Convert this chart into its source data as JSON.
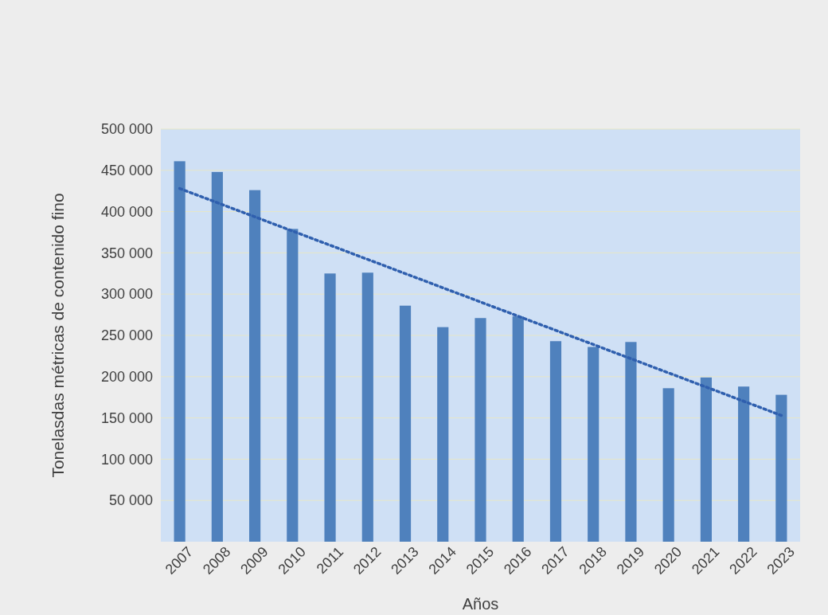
{
  "chart_data": {
    "type": "bar",
    "xlabel": "Años",
    "ylabel": "Tonelasdas métricas de contenido fino",
    "categories": [
      "2007",
      "2008",
      "2009",
      "2010",
      "2011",
      "2012",
      "2013",
      "2014",
      "2015",
      "2016",
      "2017",
      "2018",
      "2019",
      "2020",
      "2021",
      "2022",
      "2023"
    ],
    "series": [
      {
        "color": "#4f81bd",
        "values": [
          461000,
          448000,
          426000,
          379000,
          325000,
          326000,
          286000,
          260000,
          271000,
          273000,
          243000,
          236000,
          242000,
          186000,
          199000,
          188000,
          178000
        ]
      },
      {
        "type": "line",
        "color": "#2f5fae",
        "line_style": "dotted",
        "values": [
          428000,
          null,
          null,
          null,
          null,
          null,
          null,
          null,
          null,
          null,
          null,
          null,
          null,
          null,
          null,
          null,
          153000
        ]
      }
    ],
    "ylim": [
      0,
      500000
    ],
    "yticks": [
      {
        "value": 50000,
        "label": "50 000"
      },
      {
        "value": 100000,
        "label": "100 000"
      },
      {
        "value": 150000,
        "label": "150 000"
      },
      {
        "value": 200000,
        "label": "200 000"
      },
      {
        "value": 250000,
        "label": "250 000"
      },
      {
        "value": 300000,
        "label": "300 000"
      },
      {
        "value": 350000,
        "label": "350 000"
      },
      {
        "value": 400000,
        "label": "400 000"
      },
      {
        "value": 450000,
        "label": "450 000"
      },
      {
        "value": 500000,
        "label": "500 000"
      }
    ],
    "grid": "y"
  }
}
